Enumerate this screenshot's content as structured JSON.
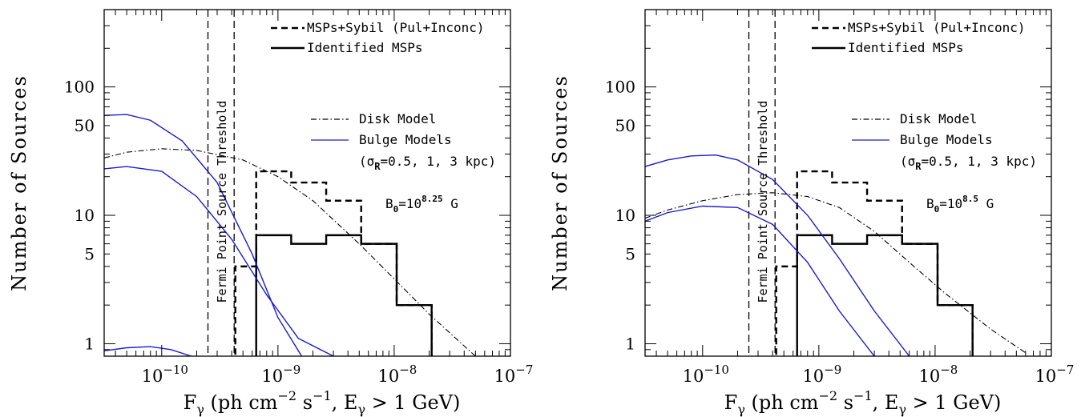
{
  "chart_data": [
    {
      "type": "line",
      "xlabel": "F_γ (ph cm^-2 s^-1, E_γ > 1 GeV)",
      "ylabel": "Number of Sources",
      "x_scale": "log",
      "y_scale": "log",
      "xlim": [
        3.2e-11,
        1e-07
      ],
      "ylim": [
        0.8,
        400
      ],
      "x_ticks": [
        1e-10,
        1e-09,
        1e-08,
        1e-07
      ],
      "x_tick_labels": [
        "10",
        "10",
        "10",
        "10"
      ],
      "x_tick_exponents": [
        "−10",
        "−9",
        "−8",
        "−7"
      ],
      "y_ticks": [
        1,
        5,
        10,
        50,
        100
      ],
      "y_tick_labels": [
        "1",
        "5",
        "10",
        "50",
        "100"
      ],
      "threshold_label": "Fermi Point Source Threshold",
      "threshold_lines": [
        2.5e-10,
        4.2e-10
      ],
      "field_label": "B",
      "field_sub": "0",
      "field_base": "=10",
      "field_exp": "8.25",
      "field_unit": " G",
      "legend_top": [
        {
          "label": "MSPs+Sybil (Pul+Inconc)",
          "style": "dashed"
        },
        {
          "label": "Identified MSPs",
          "style": "solid"
        }
      ],
      "legend_models": [
        {
          "label": "Disk Model",
          "style": "dashdot",
          "color": "#000000"
        },
        {
          "label": "Bulge Models",
          "style": "solid",
          "color": "#1a1ad4"
        }
      ],
      "legend_sigma": {
        "prefix": "(σ",
        "sub": "R",
        "suffix": "=0.5, 1, 3 kpc)"
      },
      "series": [
        {
          "name": "MSPs+Sybil (Pul+Inconc)",
          "style": "dashed",
          "bin_edges": [
            3.2e-10,
            4.3e-10,
            6.5e-10,
            1.3e-09,
            2.6e-09,
            5.2e-09,
            1.05e-08,
            2.1e-08
          ],
          "values": [
            0.7,
            4,
            22,
            18,
            13,
            6,
            2
          ]
        },
        {
          "name": "Identified MSPs",
          "style": "solid",
          "bin_edges": [
            6.5e-10,
            1.3e-09,
            2.6e-09,
            5.2e-09,
            1.05e-08,
            2.1e-08
          ],
          "values": [
            7,
            6,
            7,
            6,
            2
          ]
        },
        {
          "name": "Disk Model",
          "style": "dashdot",
          "color": "#000000",
          "x": [
            3.2e-11,
            5e-11,
            1e-10,
            2e-10,
            5e-10,
            1e-09,
            2e-09,
            5e-09,
            1e-08,
            2e-08,
            5e-08
          ],
          "y": [
            28,
            31,
            33,
            32,
            27,
            20,
            13,
            6,
            3.2,
            1.7,
            0.8
          ]
        },
        {
          "name": "Bulge Models",
          "style": "solid",
          "color": "#1a1ad4",
          "x": [
            3.2e-11,
            5e-11,
            8e-11,
            1.5e-10,
            3e-10,
            6e-10,
            1e-09,
            1.6e-09
          ],
          "y": [
            60,
            61,
            55,
            38,
            18,
            5,
            1.6,
            0.8
          ]
        },
        {
          "name": "Bulge Models",
          "style": "solid",
          "color": "#1a1ad4",
          "x": [
            3.2e-11,
            5e-11,
            1e-10,
            2e-10,
            4e-10,
            8e-10,
            1.5e-09,
            3e-09
          ],
          "y": [
            23,
            24,
            22,
            14,
            6.5,
            2.4,
            1.1,
            0.8
          ]
        },
        {
          "name": "Bulge Models",
          "style": "solid",
          "color": "#1a1ad4",
          "x": [
            3.2e-11,
            5e-11,
            8e-11,
            1.2e-10,
            1.8e-10
          ],
          "y": [
            0.88,
            0.93,
            0.95,
            0.9,
            0.8
          ]
        }
      ]
    },
    {
      "type": "line",
      "xlabel": "F_γ (ph cm^-2 s^-1, E_γ > 1 GeV)",
      "ylabel": "Number of Sources",
      "x_scale": "log",
      "y_scale": "log",
      "xlim": [
        3.2e-11,
        1e-07
      ],
      "ylim": [
        0.8,
        400
      ],
      "x_ticks": [
        1e-10,
        1e-09,
        1e-08,
        1e-07
      ],
      "x_tick_labels": [
        "10",
        "10",
        "10",
        "10"
      ],
      "x_tick_exponents": [
        "−10",
        "−9",
        "−8",
        "−7"
      ],
      "y_ticks": [
        1,
        5,
        10,
        50,
        100
      ],
      "y_tick_labels": [
        "1",
        "5",
        "10",
        "50",
        "100"
      ],
      "threshold_label": "Fermi Point Source Threshold",
      "threshold_lines": [
        2.5e-10,
        4.2e-10
      ],
      "field_label": "B",
      "field_sub": "0",
      "field_base": "=10",
      "field_exp": "8.5",
      "field_unit": " G",
      "legend_top": [
        {
          "label": "MSPs+Sybil (Pul+Inconc)",
          "style": "dashed"
        },
        {
          "label": "Identified MSPs",
          "style": "solid"
        }
      ],
      "legend_models": [
        {
          "label": "Disk Model",
          "style": "dashdot",
          "color": "#000000"
        },
        {
          "label": "Bulge Models",
          "style": "solid",
          "color": "#1a1ad4"
        }
      ],
      "legend_sigma": {
        "prefix": "(σ",
        "sub": "R",
        "suffix": "=0.5, 1, 3 kpc)"
      },
      "series": [
        {
          "name": "MSPs+Sybil (Pul+Inconc)",
          "style": "dashed",
          "bin_edges": [
            3.2e-10,
            4.3e-10,
            6.5e-10,
            1.3e-09,
            2.6e-09,
            5.2e-09,
            1.05e-08,
            2.1e-08
          ],
          "values": [
            0.7,
            4,
            22,
            18,
            13,
            6,
            2
          ]
        },
        {
          "name": "Identified MSPs",
          "style": "solid",
          "bin_edges": [
            6.5e-10,
            1.3e-09,
            2.6e-09,
            5.2e-09,
            1.05e-08,
            2.1e-08
          ],
          "values": [
            7,
            6,
            7,
            6,
            2
          ]
        },
        {
          "name": "Disk Model",
          "style": "dashdot",
          "color": "#000000",
          "x": [
            3.2e-11,
            5e-11,
            1e-10,
            2e-10,
            4e-10,
            8e-10,
            1.5e-09,
            3e-09,
            6e-09,
            1.2e-08,
            3e-08,
            6e-08
          ],
          "y": [
            9.5,
            11,
            13,
            14.5,
            15,
            14,
            11.5,
            7.5,
            4.3,
            2.5,
            1.3,
            0.85
          ]
        },
        {
          "name": "Bulge Models",
          "style": "solid",
          "color": "#1a1ad4",
          "x": [
            3.2e-11,
            5e-11,
            8e-11,
            1.3e-10,
            2e-10,
            4e-10,
            8e-10,
            1.5e-09,
            3e-09,
            6e-09
          ],
          "y": [
            24,
            27,
            29,
            29.5,
            27,
            19,
            10,
            4.6,
            1.8,
            0.8
          ]
        },
        {
          "name": "Bulge Models",
          "style": "solid",
          "color": "#1a1ad4",
          "x": [
            3.2e-11,
            5e-11,
            1e-10,
            2e-10,
            4e-10,
            8e-10,
            1.5e-09,
            3e-09
          ],
          "y": [
            9,
            10.5,
            11.8,
            11.5,
            8.5,
            4.3,
            1.8,
            0.8
          ]
        }
      ]
    }
  ]
}
